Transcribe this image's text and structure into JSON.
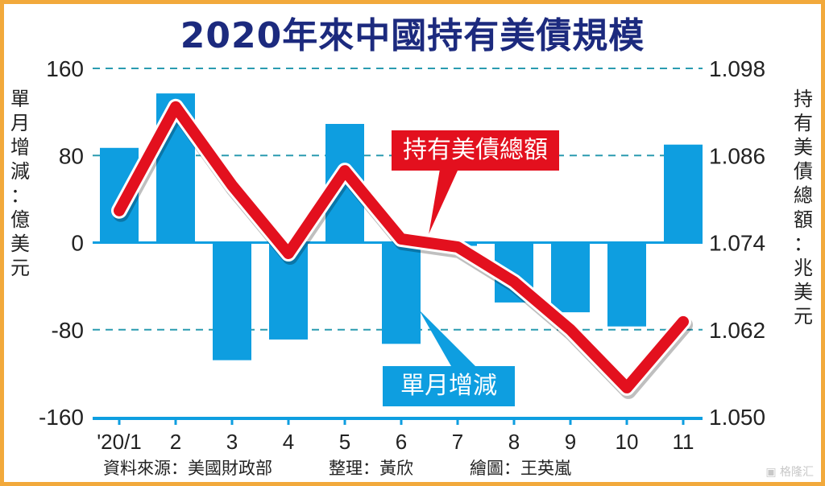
{
  "chart_data": {
    "type": "bar+line",
    "title": "2020年來中國持有美債規模",
    "categories": [
      "'20/1",
      "2",
      "3",
      "4",
      "5",
      "6",
      "7",
      "8",
      "9",
      "10",
      "11"
    ],
    "series": [
      {
        "name": "單月增減",
        "axis": "left",
        "type": "bar",
        "color": "#0e9ee0",
        "values": [
          87,
          137,
          -108,
          -89,
          109,
          -93,
          -3,
          -55,
          -64,
          -77,
          90
        ]
      },
      {
        "name": "持有美債總額",
        "axis": "right",
        "type": "line",
        "color": "#e3101e",
        "values": [
          1.0784,
          1.0927,
          1.0819,
          1.0725,
          1.0839,
          1.0745,
          1.0734,
          1.0686,
          1.062,
          1.054,
          1.0631
        ]
      }
    ],
    "ylabel_left": "單月增減：億美元",
    "ylabel_right": "持有美債總額：兆美元",
    "ylim_left": [
      -160,
      160
    ],
    "yticks_left": [
      "160",
      "80",
      "0",
      "-80",
      "-160"
    ],
    "ylim_right": [
      1.05,
      1.098
    ],
    "yticks_right": [
      "1.098",
      "1.086",
      "1.074",
      "1.062",
      "1.050"
    ],
    "grid": "dashed horizontal",
    "legend": "callouts"
  },
  "footer": {
    "source": "資料來源：美國財政部",
    "editor": "整理：黃欣",
    "artist": "繪圖：王英嵐"
  },
  "watermark": "格隆汇"
}
